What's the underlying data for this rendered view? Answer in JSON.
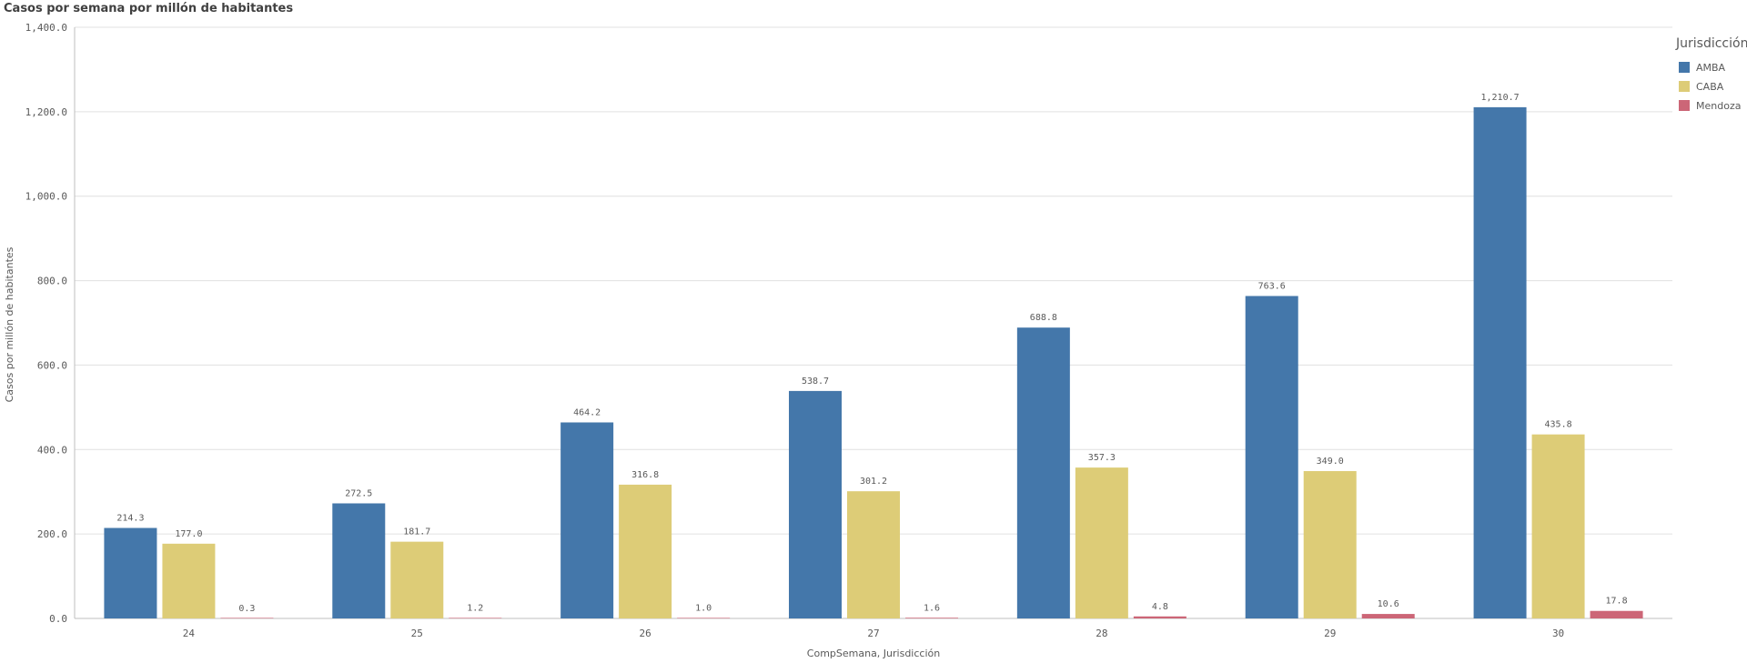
{
  "chart_data": {
    "type": "bar",
    "title": "Casos por semana por millón de habitantes",
    "xlabel": "CompSemana, Jurisdicción",
    "ylabel": "Casos por millón de habitantes",
    "categories": [
      "24",
      "25",
      "26",
      "27",
      "28",
      "29",
      "30"
    ],
    "series": [
      {
        "name": "AMBA",
        "color": "#4477aa",
        "values": [
          214.3,
          272.5,
          464.2,
          538.7,
          688.8,
          763.6,
          1210.7
        ],
        "labels": [
          "214.3",
          "272.5",
          "464.2",
          "538.7",
          "688.8",
          "763.6",
          "1,210.7"
        ]
      },
      {
        "name": "CABA",
        "color": "#ddcc77",
        "values": [
          177.0,
          181.7,
          316.8,
          301.2,
          357.3,
          349.0,
          435.8
        ],
        "labels": [
          "177.0",
          "181.7",
          "316.8",
          "301.2",
          "357.3",
          "349.0",
          "435.8"
        ]
      },
      {
        "name": "Mendoza",
        "color": "#cc6677",
        "values": [
          0.3,
          1.2,
          1.0,
          1.6,
          4.8,
          10.6,
          17.8
        ],
        "labels": [
          "0.3",
          "1.2",
          "1.0",
          "1.6",
          "4.8",
          "10.6",
          "17.8"
        ]
      }
    ],
    "ylim": [
      0,
      1400
    ],
    "yticks": [
      0,
      200,
      400,
      600,
      800,
      1000,
      1200,
      1400
    ],
    "ytick_labels": [
      "0.0",
      "200.0",
      "400.0",
      "600.0",
      "800.0",
      "1,000.0",
      "1,200.0",
      "1,400.0"
    ],
    "grid": true,
    "legend": {
      "title": "Jurisdicción",
      "placement": "top-right"
    }
  }
}
